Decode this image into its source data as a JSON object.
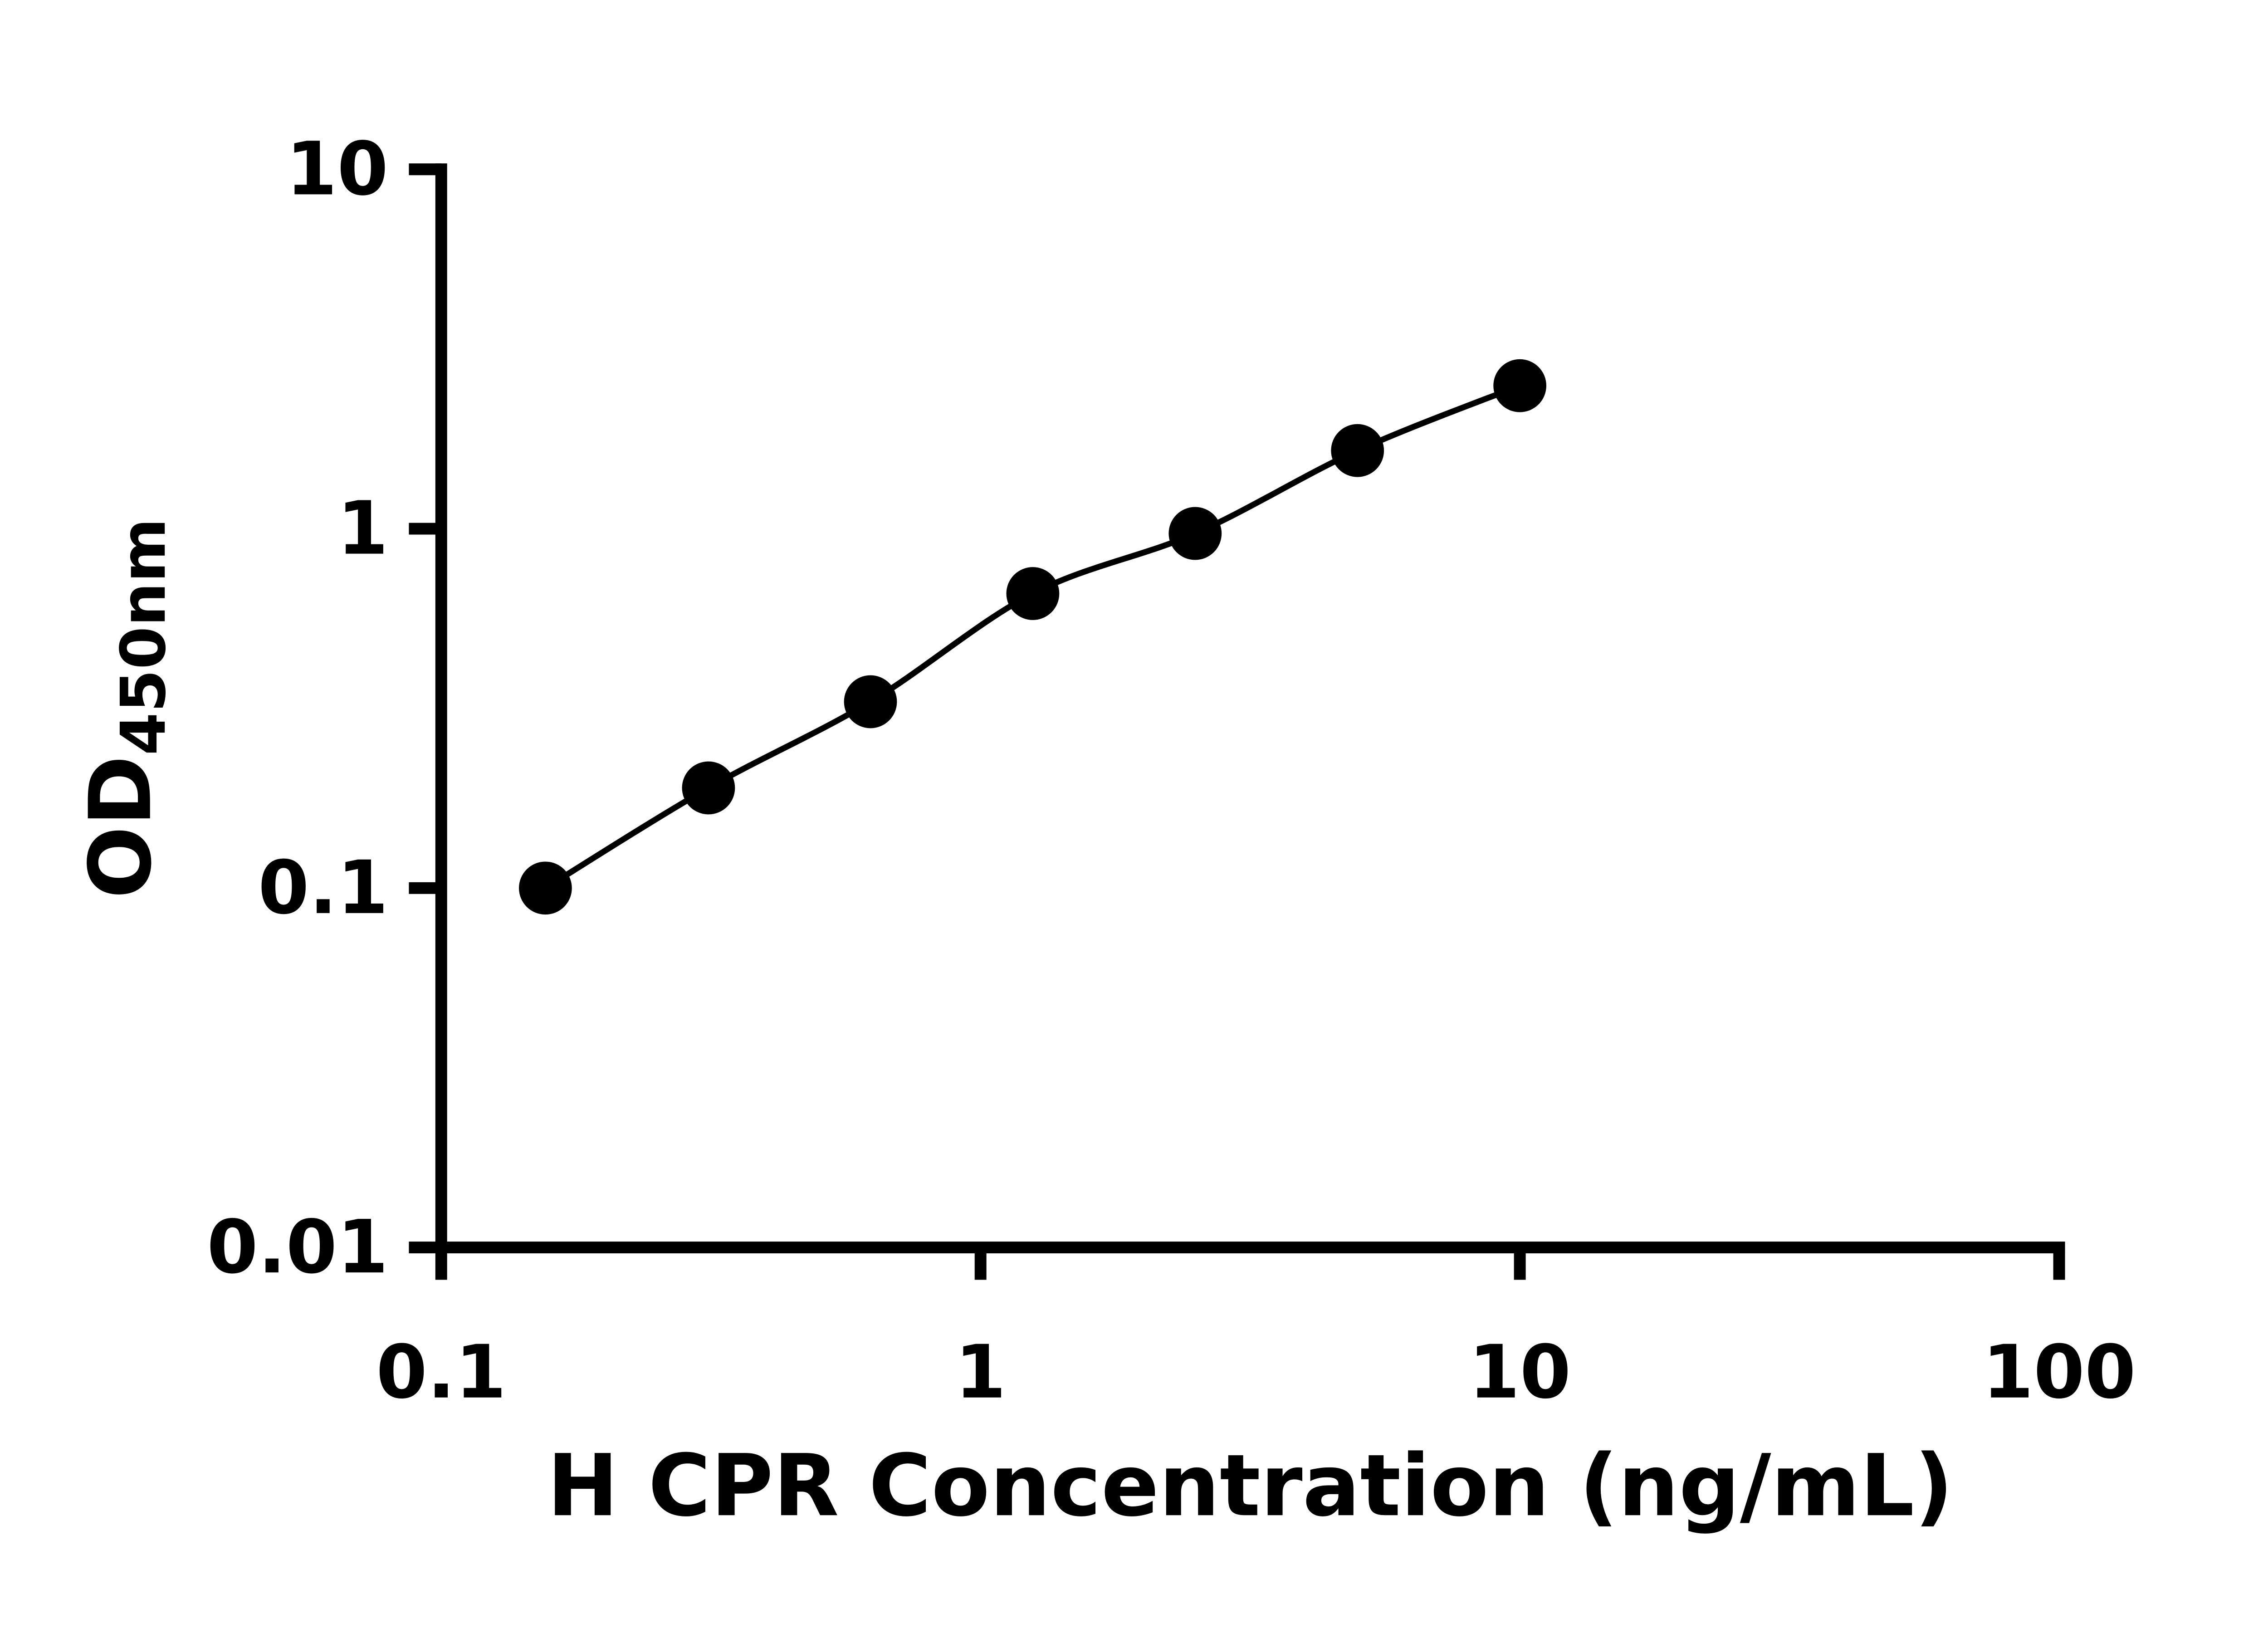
{
  "figure": {
    "background": "#ffffff"
  },
  "chart_data": {
    "type": "scatter",
    "title": "",
    "xlabel": "H CPR Concentration (ng/mL)",
    "ylabel": "OD450nm",
    "ylabel_main": "OD",
    "ylabel_sub": "450nm",
    "x_scale": "log",
    "y_scale": "log",
    "xlim": [
      0.1,
      100
    ],
    "ylim": [
      0.01,
      10
    ],
    "grid": false,
    "legend": null,
    "line_through_points": true,
    "marker": "circle",
    "x_ticks": [
      {
        "value": 0.1,
        "label": "0.1"
      },
      {
        "value": 1,
        "label": "1"
      },
      {
        "value": 10,
        "label": "10"
      },
      {
        "value": 100,
        "label": "100"
      }
    ],
    "y_ticks": [
      {
        "value": 0.01,
        "label": "0.01"
      },
      {
        "value": 0.1,
        "label": "0.1"
      },
      {
        "value": 1,
        "label": "1"
      },
      {
        "value": 10,
        "label": "10"
      }
    ],
    "points": [
      {
        "x": 0.156,
        "y": 0.1
      },
      {
        "x": 0.313,
        "y": 0.19
      },
      {
        "x": 0.625,
        "y": 0.33
      },
      {
        "x": 1.25,
        "y": 0.66
      },
      {
        "x": 2.5,
        "y": 0.97
      },
      {
        "x": 5,
        "y": 1.65
      },
      {
        "x": 10,
        "y": 2.5
      }
    ],
    "colors": {
      "axis": "#000000",
      "line": "#000000",
      "marker": "#000000",
      "text": "#000000",
      "background": "#ffffff"
    }
  }
}
